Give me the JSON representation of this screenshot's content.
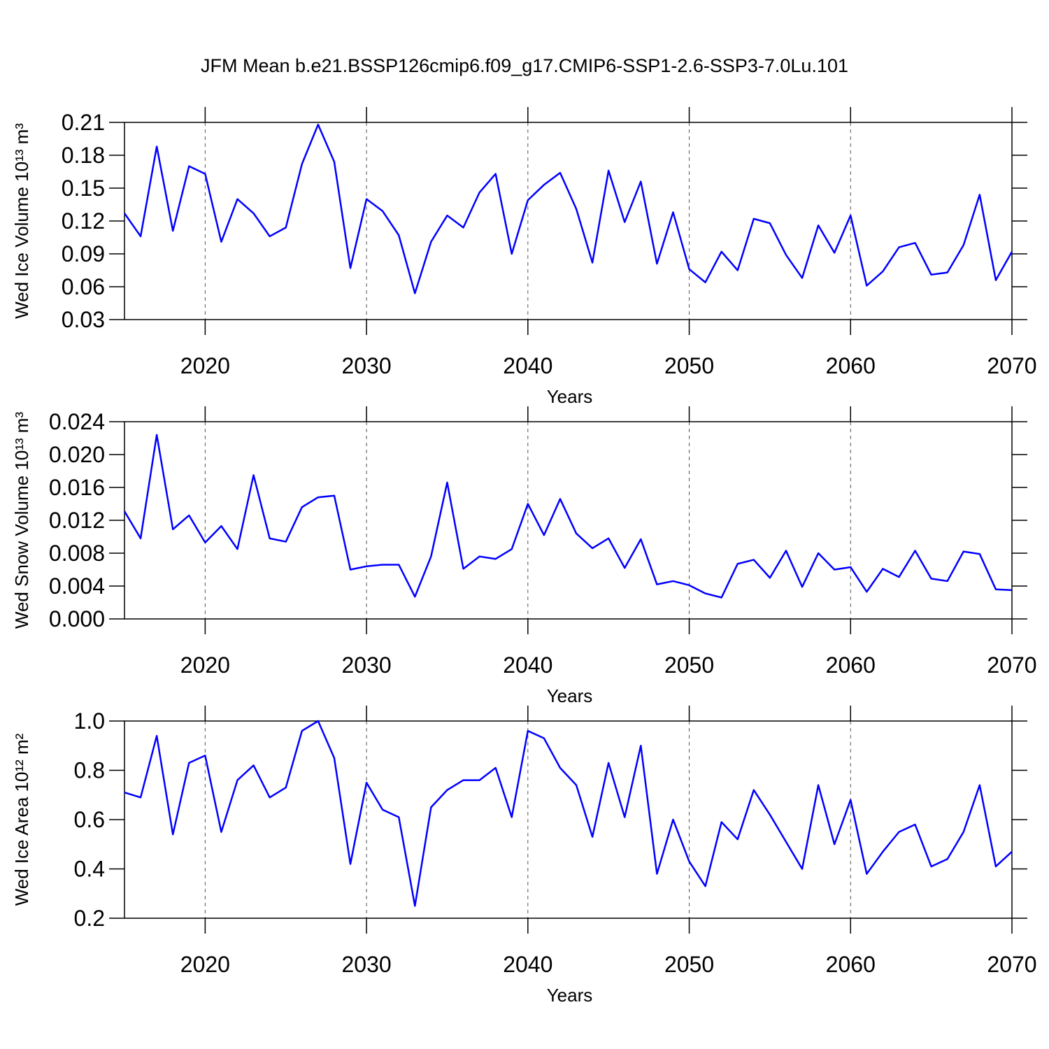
{
  "title": "JFM Mean b.e21.BSSP126cmip6.f09_g17.CMIP6-SSP1-2.6-SSP3-7.0Lu.101",
  "chart_data": [
    {
      "type": "line",
      "xlabel": "Years",
      "ylabel": "Wed Ice Volume 10¹³ m³",
      "x": [
        2015,
        2016,
        2017,
        2018,
        2019,
        2020,
        2021,
        2022,
        2023,
        2024,
        2025,
        2026,
        2027,
        2028,
        2029,
        2030,
        2031,
        2032,
        2033,
        2034,
        2035,
        2036,
        2037,
        2038,
        2039,
        2040,
        2041,
        2042,
        2043,
        2044,
        2045,
        2046,
        2047,
        2048,
        2049,
        2050,
        2051,
        2052,
        2053,
        2054,
        2055,
        2056,
        2057,
        2058,
        2059,
        2060,
        2061,
        2062,
        2063,
        2064,
        2065,
        2066,
        2067,
        2068,
        2069,
        2070
      ],
      "series": [
        {
          "color": "#0000ff",
          "values": [
            0.127,
            0.106,
            0.188,
            0.111,
            0.17,
            0.163,
            0.101,
            0.14,
            0.127,
            0.106,
            0.114,
            0.172,
            0.208,
            0.174,
            0.077,
            0.14,
            0.129,
            0.107,
            0.054,
            0.101,
            0.125,
            0.114,
            0.146,
            0.163,
            0.09,
            0.139,
            0.153,
            0.164,
            0.131,
            0.082,
            0.166,
            0.119,
            0.156,
            0.081,
            0.128,
            0.076,
            0.064,
            0.092,
            0.075,
            0.122,
            0.118,
            0.089,
            0.068,
            0.116,
            0.091,
            0.125,
            0.061,
            0.074,
            0.096,
            0.1,
            0.071,
            0.073,
            0.098,
            0.144,
            0.066,
            0.092
          ]
        }
      ],
      "xlim": [
        2015,
        2070
      ],
      "xticks": [
        2020,
        2030,
        2040,
        2050,
        2060,
        2070
      ],
      "ylim": [
        0.03,
        0.21
      ],
      "yticks": [
        0.03,
        0.06,
        0.09,
        0.12,
        0.15,
        0.18,
        0.21
      ],
      "xgrid": true
    },
    {
      "type": "line",
      "xlabel": "Years",
      "ylabel": "Wed Snow Volume 10¹³ m³",
      "x": [
        2015,
        2016,
        2017,
        2018,
        2019,
        2020,
        2021,
        2022,
        2023,
        2024,
        2025,
        2026,
        2027,
        2028,
        2029,
        2030,
        2031,
        2032,
        2033,
        2034,
        2035,
        2036,
        2037,
        2038,
        2039,
        2040,
        2041,
        2042,
        2043,
        2044,
        2045,
        2046,
        2047,
        2048,
        2049,
        2050,
        2051,
        2052,
        2053,
        2054,
        2055,
        2056,
        2057,
        2058,
        2059,
        2060,
        2061,
        2062,
        2063,
        2064,
        2065,
        2066,
        2067,
        2068,
        2069,
        2070
      ],
      "series": [
        {
          "color": "#0000ff",
          "values": [
            0.0131,
            0.0098,
            0.0224,
            0.0109,
            0.0126,
            0.0093,
            0.0113,
            0.0085,
            0.0175,
            0.0098,
            0.0094,
            0.0136,
            0.0148,
            0.015,
            0.006,
            0.0064,
            0.0066,
            0.0066,
            0.0027,
            0.0076,
            0.0166,
            0.0061,
            0.0076,
            0.0073,
            0.0085,
            0.014,
            0.0102,
            0.0146,
            0.0104,
            0.0086,
            0.0098,
            0.0062,
            0.0097,
            0.0042,
            0.0046,
            0.0041,
            0.0031,
            0.0026,
            0.0067,
            0.0072,
            0.005,
            0.0083,
            0.0039,
            0.008,
            0.006,
            0.0063,
            0.0033,
            0.0061,
            0.0051,
            0.0083,
            0.0049,
            0.0046,
            0.0082,
            0.0079,
            0.0036,
            0.0035
          ]
        }
      ],
      "xlim": [
        2015,
        2070
      ],
      "xticks": [
        2020,
        2030,
        2040,
        2050,
        2060,
        2070
      ],
      "ylim": [
        0,
        0.024
      ],
      "yticks": [
        {
          "value": 0,
          "label": "0.000"
        },
        {
          "value": 0.004,
          "label": "0.004"
        },
        {
          "value": 0.008,
          "label": "0.008"
        },
        {
          "value": 0.012,
          "label": "0.012"
        },
        {
          "value": 0.016,
          "label": "0.016"
        },
        {
          "value": 0.02,
          "label": "0.020"
        },
        {
          "value": 0.024,
          "label": "0.024"
        }
      ],
      "xgrid": true
    },
    {
      "type": "line",
      "xlabel": "Years",
      "ylabel": "Wed Ice Area 10¹² m²",
      "x": [
        2015,
        2016,
        2017,
        2018,
        2019,
        2020,
        2021,
        2022,
        2023,
        2024,
        2025,
        2026,
        2027,
        2028,
        2029,
        2030,
        2031,
        2032,
        2033,
        2034,
        2035,
        2036,
        2037,
        2038,
        2039,
        2040,
        2041,
        2042,
        2043,
        2044,
        2045,
        2046,
        2047,
        2048,
        2049,
        2050,
        2051,
        2052,
        2053,
        2054,
        2055,
        2056,
        2057,
        2058,
        2059,
        2060,
        2061,
        2062,
        2063,
        2064,
        2065,
        2066,
        2067,
        2068,
        2069,
        2070
      ],
      "series": [
        {
          "color": "#0000ff",
          "values": [
            0.71,
            0.69,
            0.94,
            0.54,
            0.83,
            0.86,
            0.55,
            0.76,
            0.82,
            0.69,
            0.73,
            0.96,
            1.0,
            0.85,
            0.42,
            0.75,
            0.64,
            0.61,
            0.25,
            0.65,
            0.72,
            0.76,
            0.76,
            0.81,
            0.61,
            0.96,
            0.93,
            0.81,
            0.74,
            0.53,
            0.83,
            0.61,
            0.9,
            0.38,
            0.6,
            0.43,
            0.33,
            0.59,
            0.52,
            0.72,
            0.62,
            0.51,
            0.4,
            0.74,
            0.5,
            0.68,
            0.38,
            0.47,
            0.55,
            0.58,
            0.41,
            0.44,
            0.55,
            0.74,
            0.41,
            0.47
          ]
        }
      ],
      "xlim": [
        2015,
        2070
      ],
      "xticks": [
        2020,
        2030,
        2040,
        2050,
        2060,
        2070
      ],
      "ylim": [
        0.2,
        1.0
      ],
      "yticks": [
        0.2,
        0.4,
        0.6,
        0.8,
        {
          "value": 1,
          "label": "1.0"
        }
      ],
      "xgrid": true
    }
  ]
}
